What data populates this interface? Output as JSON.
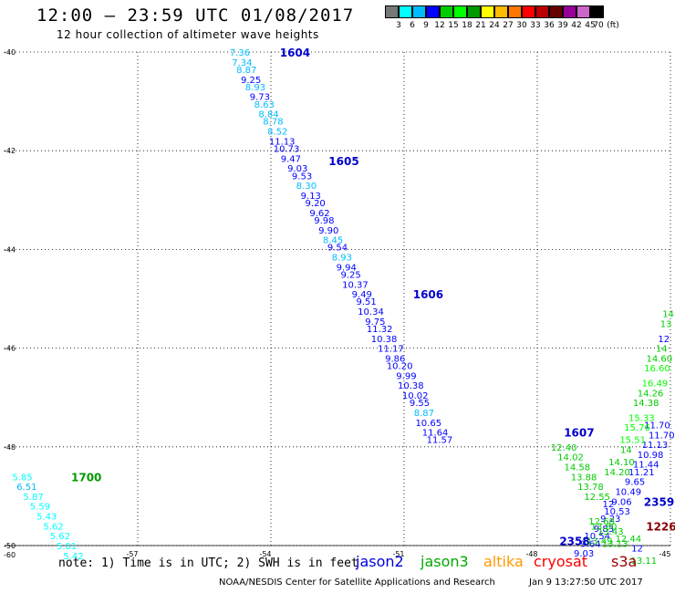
{
  "header": {
    "title": "12:00 – 23:59 UTC 01/08/2017",
    "subtitle": "12 hour collection of altimeter wave heights"
  },
  "colorbar": {
    "colors": [
      "#777777",
      "#00ffff",
      "#00bbff",
      "#0000ff",
      "#00cc00",
      "#00ff00",
      "#009900",
      "#ffff00",
      "#ffbb00",
      "#ff7700",
      "#ff0000",
      "#bb0000",
      "#660000",
      "#990099",
      "#cc66cc",
      "#000000"
    ],
    "labels": [
      "3",
      "6",
      "9",
      "12",
      "15",
      "18",
      "21",
      "24",
      "27",
      "30",
      "33",
      "36",
      "39",
      "42",
      "45",
      "70"
    ],
    "unit": "(ft)"
  },
  "note": {
    "text": "note: 1) Time is in UTC; 2) SWH is in feet",
    "satellites": [
      {
        "name": "jason2",
        "color": "#0000dd"
      },
      {
        "name": "jason3",
        "color": "#00aa00"
      },
      {
        "name": "altika",
        "color": "#ff9900"
      },
      {
        "name": "cryosat",
        "color": "#ff0000"
      },
      {
        "name": "s3a",
        "color": "#990000"
      }
    ]
  },
  "footer": {
    "credit": "NOAA/NESDIS Center for Satellite Applications and Research",
    "timestamp": "Jan  9 13:27:50 UTC 2017"
  },
  "chart_data": {
    "type": "scatter",
    "xlim": [
      -60,
      -45
    ],
    "ylim": [
      -50,
      -40
    ],
    "x_ticks": [
      -57,
      -54,
      -51,
      -48,
      -45
    ],
    "y_ticks": [
      -40,
      -42,
      -44,
      -46,
      -48,
      -50
    ],
    "x_tick_labels": [
      "-57",
      "-54",
      "-51",
      "-48",
      "-45"
    ],
    "y_tick_labels": [
      "-40",
      "-42",
      "-44",
      "-46",
      "-48",
      "-50"
    ],
    "corner_label": "-60",
    "grid": "dotted",
    "tracks": [
      {
        "satellite": "jason2",
        "label_color": "#0000cc",
        "time_labels": [
          {
            "text": "1604",
            "lon": -53.8,
            "lat": -40.0
          },
          {
            "text": "1605",
            "lon": -52.7,
            "lat": -42.2
          },
          {
            "text": "1606",
            "lon": -50.8,
            "lat": -44.9
          },
          {
            "text": "1607",
            "lon": -47.4,
            "lat": -47.7
          },
          {
            "text": "2359",
            "lon": -45.6,
            "lat": -49.1
          },
          {
            "text": "2358",
            "lon": -47.5,
            "lat": -49.9
          }
        ],
        "points": [
          {
            "lon": -54.7,
            "lat": -40.0,
            "swh": 7.36
          },
          {
            "lon": -54.65,
            "lat": -40.2,
            "swh": 7.34
          },
          {
            "lon": -54.55,
            "lat": -40.35,
            "swh": 8.87
          },
          {
            "lon": -54.45,
            "lat": -40.55,
            "swh": 9.25
          },
          {
            "lon": -54.35,
            "lat": -40.7,
            "swh": 8.93
          },
          {
            "lon": -54.25,
            "lat": -40.9,
            "swh": 9.73
          },
          {
            "lon": -54.15,
            "lat": -41.05,
            "swh": 8.63
          },
          {
            "lon": -54.05,
            "lat": -41.25,
            "swh": 8.84
          },
          {
            "lon": -53.95,
            "lat": -41.4,
            "swh": 8.78
          },
          {
            "lon": -53.85,
            "lat": -41.6,
            "swh": 8.52
          },
          {
            "lon": -53.75,
            "lat": -41.8,
            "swh": 11.13
          },
          {
            "lon": -53.65,
            "lat": -41.95,
            "swh": 10.73
          },
          {
            "lon": -53.55,
            "lat": -42.15,
            "swh": 9.47
          },
          {
            "lon": -53.4,
            "lat": -42.35,
            "swh": 9.03
          },
          {
            "lon": -53.3,
            "lat": -42.5,
            "swh": 9.53
          },
          {
            "lon": -53.2,
            "lat": -42.7,
            "swh": 8.3
          },
          {
            "lon": -53.1,
            "lat": -42.9,
            "swh": 9.13
          },
          {
            "lon": -53.0,
            "lat": -43.05,
            "swh": 9.2
          },
          {
            "lon": -52.9,
            "lat": -43.25,
            "swh": 9.62
          },
          {
            "lon": -52.8,
            "lat": -43.4,
            "swh": 9.98
          },
          {
            "lon": -52.7,
            "lat": -43.6,
            "swh": 9.9
          },
          {
            "lon": -52.6,
            "lat": -43.8,
            "swh": 8.45
          },
          {
            "lon": -52.5,
            "lat": -43.95,
            "swh": 9.54
          },
          {
            "lon": -52.4,
            "lat": -44.15,
            "swh": 8.93
          },
          {
            "lon": -52.3,
            "lat": -44.35,
            "swh": 9.94
          },
          {
            "lon": -52.2,
            "lat": -44.5,
            "swh": 9.25
          },
          {
            "lon": -52.1,
            "lat": -44.7,
            "swh": 10.37
          },
          {
            "lon": -51.95,
            "lat": -44.9,
            "swh": 9.49
          },
          {
            "lon": -51.85,
            "lat": -45.05,
            "swh": 9.51
          },
          {
            "lon": -51.75,
            "lat": -45.25,
            "swh": 10.34
          },
          {
            "lon": -51.65,
            "lat": -45.45,
            "swh": 9.75
          },
          {
            "lon": -51.55,
            "lat": -45.6,
            "swh": 11.32
          },
          {
            "lon": -51.45,
            "lat": -45.8,
            "swh": 10.38
          },
          {
            "lon": -51.3,
            "lat": -46.0,
            "swh": 11.17
          },
          {
            "lon": -51.2,
            "lat": -46.2,
            "swh": 9.86
          },
          {
            "lon": -51.1,
            "lat": -46.35,
            "swh": 10.2
          },
          {
            "lon": -50.95,
            "lat": -46.55,
            "swh": 9.99
          },
          {
            "lon": -50.85,
            "lat": -46.75,
            "swh": 10.38
          },
          {
            "lon": -50.75,
            "lat": -46.95,
            "swh": 10.02
          },
          {
            "lon": -50.65,
            "lat": -47.1,
            "swh": 9.55
          },
          {
            "lon": -50.55,
            "lat": -47.3,
            "swh": 8.87
          },
          {
            "lon": -50.45,
            "lat": -47.5,
            "swh": 10.65
          },
          {
            "lon": -50.3,
            "lat": -47.7,
            "swh": 11.64
          },
          {
            "lon": -50.2,
            "lat": -47.85,
            "swh": 11.57
          },
          {
            "lon": -45.3,
            "lat": -47.55,
            "swh": 11.7
          },
          {
            "lon": -45.2,
            "lat": -47.75,
            "swh": 11.7
          },
          {
            "lon": -45.35,
            "lat": -47.95,
            "swh": 11.13
          },
          {
            "lon": -45.45,
            "lat": -48.15,
            "swh": 10.98
          },
          {
            "lon": -45.55,
            "lat": -48.35,
            "swh": 11.44
          },
          {
            "lon": -45.65,
            "lat": -48.5,
            "swh": 11.21
          },
          {
            "lon": -45.8,
            "lat": -48.7,
            "swh": 9.65
          },
          {
            "lon": -45.95,
            "lat": -48.9,
            "swh": 10.49
          },
          {
            "lon": -46.1,
            "lat": -49.1,
            "swh": 9.06
          },
          {
            "lon": -46.2,
            "lat": -49.3,
            "swh": 10.53
          },
          {
            "lon": -46.35,
            "lat": -49.45,
            "swh": 9.23
          },
          {
            "lon": -46.5,
            "lat": -49.65,
            "swh": 9.83
          },
          {
            "lon": -46.65,
            "lat": -49.8,
            "swh": 10.54
          },
          {
            "lon": -46.8,
            "lat": -49.95,
            "swh": 9.64
          },
          {
            "lon": -46.95,
            "lat": -50.15,
            "swh": 9.03
          },
          {
            "lon": -45.75,
            "lat": -50.05,
            "swh": 12.0
          }
        ]
      },
      {
        "satellite": "jason3",
        "label_color": "#009900",
        "time_labels": [
          {
            "text": "1700",
            "lon": -58.5,
            "lat": -48.6
          }
        ],
        "points": [
          {
            "lon": -59.6,
            "lat": -48.6,
            "swh": 5.85
          },
          {
            "lon": -59.5,
            "lat": -48.8,
            "swh": 6.51
          },
          {
            "lon": -59.35,
            "lat": -49.0,
            "swh": 5.87
          },
          {
            "lon": -59.2,
            "lat": -49.2,
            "swh": 5.59
          },
          {
            "lon": -59.05,
            "lat": -49.4,
            "swh": 5.43
          },
          {
            "lon": -58.9,
            "lat": -49.6,
            "swh": 5.62
          },
          {
            "lon": -58.75,
            "lat": -49.8,
            "swh": 5.62
          },
          {
            "lon": -58.6,
            "lat": -50.0,
            "swh": 5.01
          },
          {
            "lon": -58.45,
            "lat": -50.2,
            "swh": 5.42
          },
          {
            "lon": -45.05,
            "lat": -45.3,
            "swh": 14.0
          },
          {
            "lon": -45.1,
            "lat": -45.5,
            "swh": 13.0
          },
          {
            "lon": -45.15,
            "lat": -45.8,
            "swh": 12.0
          },
          {
            "lon": -45.2,
            "lat": -46.0,
            "swh": 14.0
          },
          {
            "lon": -45.25,
            "lat": -46.2,
            "swh": 14.6
          },
          {
            "lon": -45.3,
            "lat": -46.4,
            "swh": 16.6
          },
          {
            "lon": -45.35,
            "lat": -46.7,
            "swh": 16.49
          },
          {
            "lon": -45.45,
            "lat": -46.9,
            "swh": 14.26
          },
          {
            "lon": -45.55,
            "lat": -47.1,
            "swh": 14.38
          },
          {
            "lon": -45.65,
            "lat": -47.4,
            "swh": 15.33
          },
          {
            "lon": -45.75,
            "lat": -47.6,
            "swh": 15.76
          },
          {
            "lon": -45.85,
            "lat": -47.85,
            "swh": 15.51
          },
          {
            "lon": -46.0,
            "lat": -48.05,
            "swh": 14.0
          },
          {
            "lon": -46.1,
            "lat": -48.3,
            "swh": 14.1
          },
          {
            "lon": -46.2,
            "lat": -48.5,
            "swh": 14.2
          },
          {
            "lon": -47.4,
            "lat": -48.0,
            "swh": 12.4
          },
          {
            "lon": -47.25,
            "lat": -48.2,
            "swh": 14.02
          },
          {
            "lon": -47.1,
            "lat": -48.4,
            "swh": 14.58
          },
          {
            "lon": -46.95,
            "lat": -48.6,
            "swh": 13.88
          },
          {
            "lon": -46.8,
            "lat": -48.8,
            "swh": 13.78
          },
          {
            "lon": -46.65,
            "lat": -49.0,
            "swh": 12.55
          },
          {
            "lon": -46.4,
            "lat": -49.15,
            "swh": 12.0
          },
          {
            "lon": -46.55,
            "lat": -49.5,
            "swh": 12.68
          },
          {
            "lon": -46.5,
            "lat": -49.6,
            "swh": 13.8
          },
          {
            "lon": -46.35,
            "lat": -49.7,
            "swh": 13.43
          },
          {
            "lon": -46.6,
            "lat": -49.9,
            "swh": 13.49
          },
          {
            "lon": -46.25,
            "lat": -49.95,
            "swh": 13.13
          },
          {
            "lon": -45.95,
            "lat": -49.85,
            "swh": 12.44
          },
          {
            "lon": -45.6,
            "lat": -50.3,
            "swh": 13.11
          }
        ]
      },
      {
        "satellite": "s3a",
        "label_color": "#880000",
        "time_labels": [
          {
            "text": "1226",
            "lon": -45.55,
            "lat": -49.6
          }
        ],
        "points": []
      }
    ]
  }
}
